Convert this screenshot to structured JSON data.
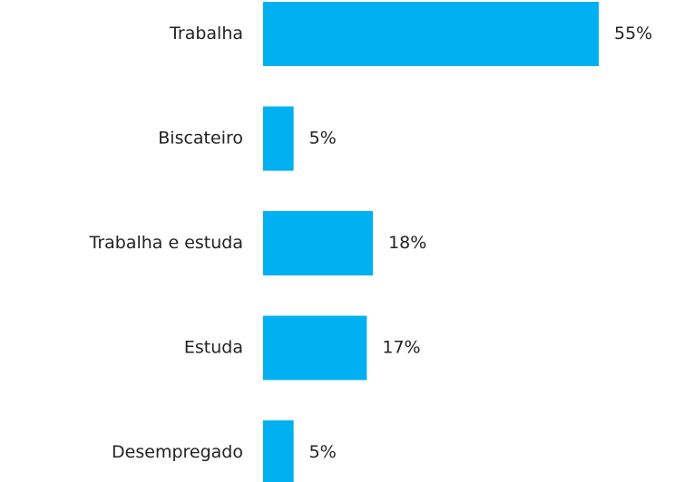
{
  "chart_data": {
    "type": "bar",
    "orientation": "horizontal",
    "color": "#00b0f0",
    "categories": [
      "Trabalha",
      "Biscateiro",
      "Trabalha e estuda",
      "Estuda",
      "Desempregado"
    ],
    "values": [
      55,
      5,
      18,
      17,
      5
    ],
    "value_labels": [
      "55%",
      "5%",
      "18%",
      "17%",
      "5%"
    ]
  }
}
